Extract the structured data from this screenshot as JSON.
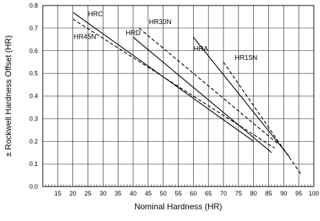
{
  "chart_data": {
    "type": "line",
    "title": "",
    "xlabel": "Nominal Hardness (HR)",
    "ylabel": "± Rockwell Hardness Offset (HR)",
    "xlim": [
      10,
      100
    ],
    "ylim": [
      0.0,
      0.8
    ],
    "x_ticks": [
      15,
      20,
      25,
      30,
      35,
      40,
      45,
      50,
      55,
      60,
      65,
      70,
      75,
      80,
      85,
      90,
      95,
      100
    ],
    "x_tick_labels": [
      "15",
      "20",
      "25",
      "30",
      "35",
      "40",
      "45",
      "50",
      "55",
      "60",
      "65",
      "70",
      "75",
      "80",
      "85",
      "90",
      "95",
      "100"
    ],
    "y_ticks": [
      0.0,
      0.1,
      0.2,
      0.3,
      0.4,
      0.5,
      0.6,
      0.7,
      0.8
    ],
    "y_tick_labels": [
      "0.0",
      "0.1",
      "0.2",
      "0.3",
      "0.4",
      "0.5",
      "0.6",
      "0.7",
      "0.8"
    ],
    "grid": true,
    "series": [
      {
        "name": "HRC",
        "style": "solid",
        "x": [
          20,
          80
        ],
        "y": [
          0.77,
          0.2
        ]
      },
      {
        "name": "HR45N",
        "style": "dashed",
        "x": [
          20,
          87
        ],
        "y": [
          0.74,
          0.17
        ]
      },
      {
        "name": "HRD",
        "style": "solid",
        "x": [
          40,
          86
        ],
        "y": [
          0.66,
          0.15
        ]
      },
      {
        "name": "HR30N",
        "style": "dashed",
        "x": [
          42,
          88
        ],
        "y": [
          0.7,
          0.19
        ]
      },
      {
        "name": "HRA",
        "style": "solid",
        "x": [
          60,
          92
        ],
        "y": [
          0.66,
          0.13
        ]
      },
      {
        "name": "HR15N",
        "style": "dashed",
        "x": [
          70,
          96
        ],
        "y": [
          0.55,
          0.05
        ]
      }
    ]
  }
}
